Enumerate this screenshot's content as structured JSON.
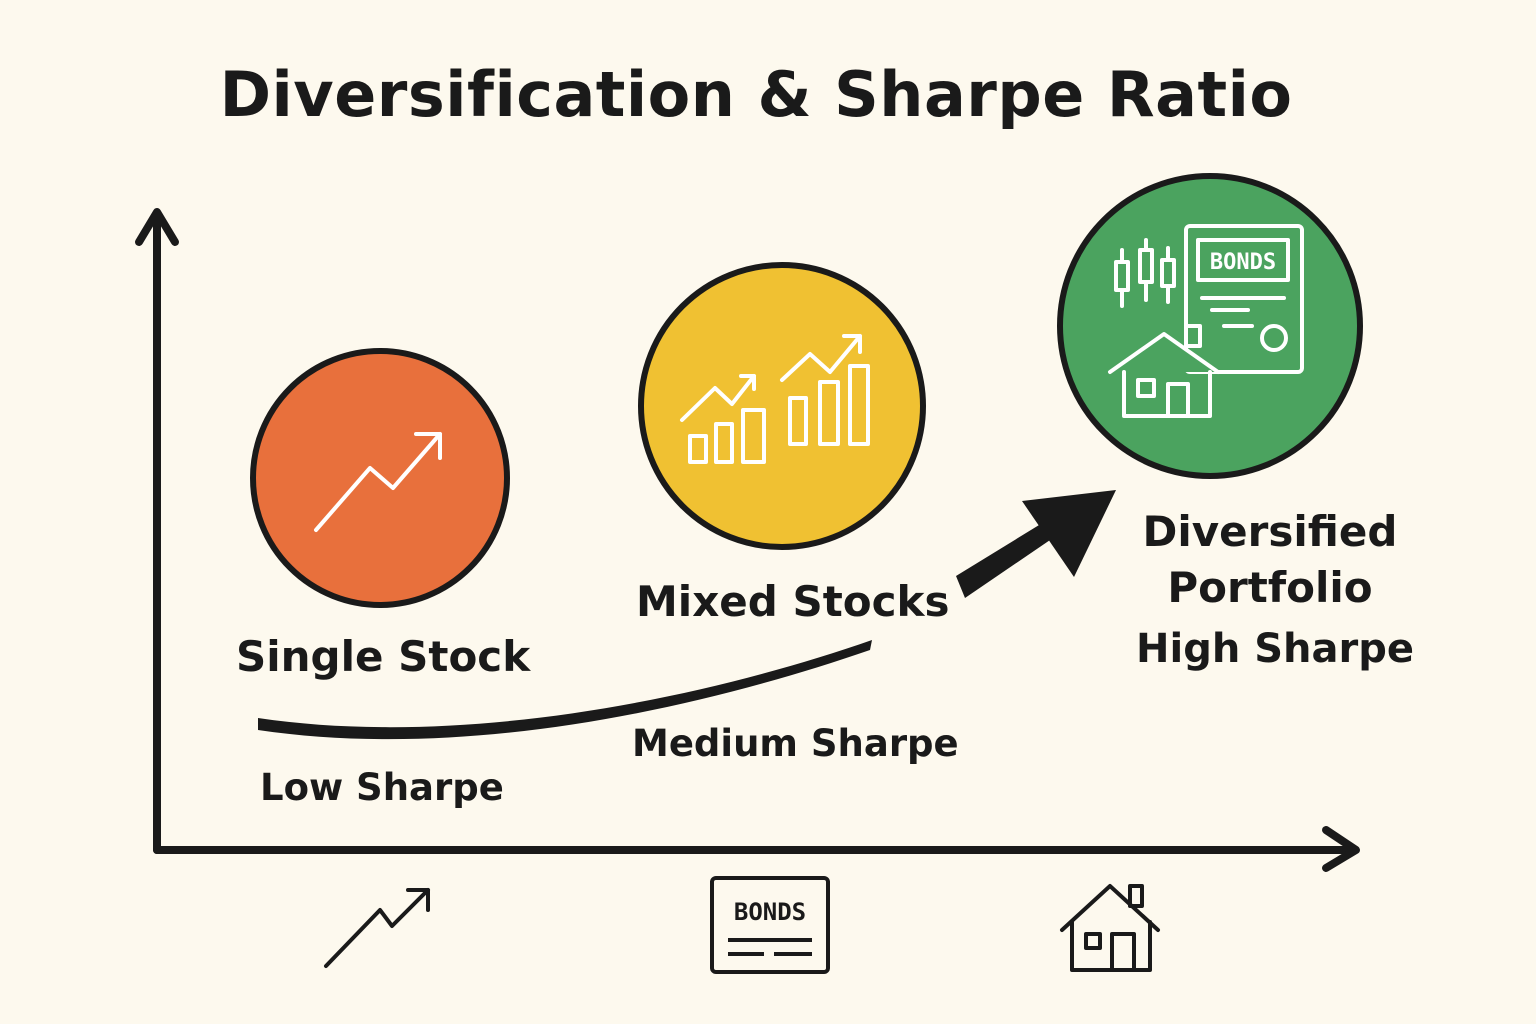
{
  "title": "Diversification & Sharpe Ratio",
  "stages": [
    {
      "name": "Single Stock",
      "sharpe": "Low Sharpe",
      "color": "#e8703c",
      "icon": "trend-up-arrow-icon"
    },
    {
      "name": "Mixed Stocks",
      "sharpe": "Medium Sharpe",
      "color": "#f0c132",
      "icon": "bar-chart-trend-icon"
    },
    {
      "name_line1": "Diversified",
      "name_line2": "Portfolio",
      "sharpe": "High Sharpe",
      "color": "#4ba35f",
      "icon": "portfolio-bonds-house-icon",
      "bonds_text": "BONDS"
    }
  ],
  "x_axis_icons": [
    {
      "icon": "trend-up-arrow-icon"
    },
    {
      "icon": "bonds-certificate-icon",
      "text": "BONDS"
    },
    {
      "icon": "house-icon"
    }
  ],
  "colors": {
    "background": "#fdf9ee",
    "ink": "#1a1a1a",
    "white_line": "#ffffff"
  }
}
